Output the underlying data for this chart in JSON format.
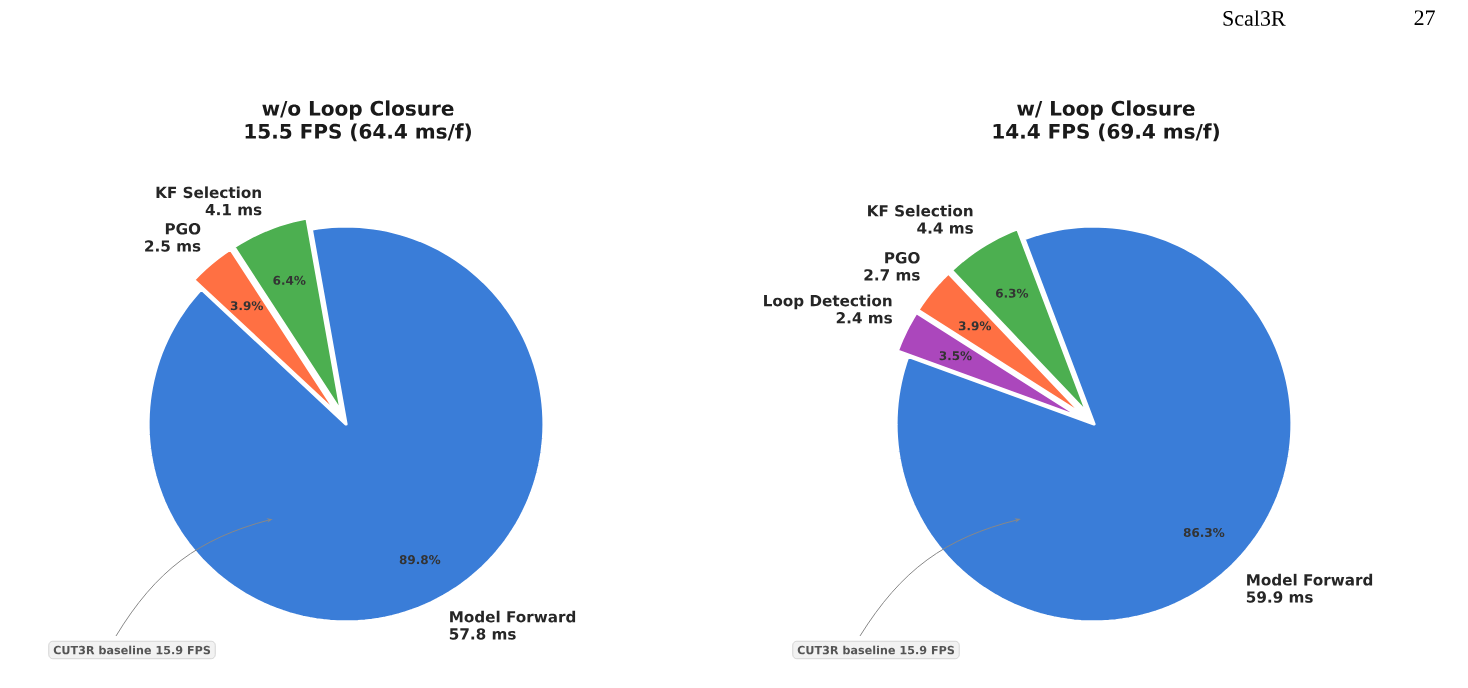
{
  "chart_data": [
    {
      "type": "pie",
      "title": "w/o Loop Closure",
      "subtitle": "15.5 FPS (64.4 ms/f)",
      "categories": [
        "Model Forward",
        "KF Selection",
        "PGO"
      ],
      "values": [
        57.8,
        4.1,
        2.5
      ],
      "colors": [
        "#3a7dd8",
        "#4caf50",
        "#ff7043"
      ],
      "value_labels": [
        "57.8 ms",
        "4.1 ms",
        "2.5 ms"
      ],
      "annotations": [
        "CUT3R baseline  15.9 FPS",
        {
          "text": "89.8%",
          "x": "Model Forward"
        },
        {
          "text": "6.4%",
          "x": "KF Selection"
        },
        {
          "text": "3.9%",
          "x": "PGO"
        }
      ]
    },
    {
      "type": "pie",
      "title": "w/ Loop Closure",
      "subtitle": "14.4 FPS (69.4 ms/f)",
      "categories": [
        "Model Forward",
        "KF Selection",
        "PGO",
        "Loop Detection"
      ],
      "values": [
        59.9,
        4.4,
        2.7,
        2.4
      ],
      "colors": [
        "#3a7dd8",
        "#4caf50",
        "#ff7043",
        "#ab47bc"
      ],
      "value_labels": [
        "59.9 ms",
        "4.4 ms",
        "2.7 ms",
        "2.4 ms"
      ],
      "annotations": [
        "CUT3R baseline  15.9 FPS",
        "Scal3R",
        "27",
        {
          "text": "86.3%",
          "x": "Model Forward"
        },
        {
          "text": "6.3%",
          "x": "KF Selection"
        },
        {
          "text": "3.9%",
          "x": "PGO"
        },
        {
          "text": "3.5%",
          "x": "Loop Detection"
        }
      ]
    }
  ]
}
